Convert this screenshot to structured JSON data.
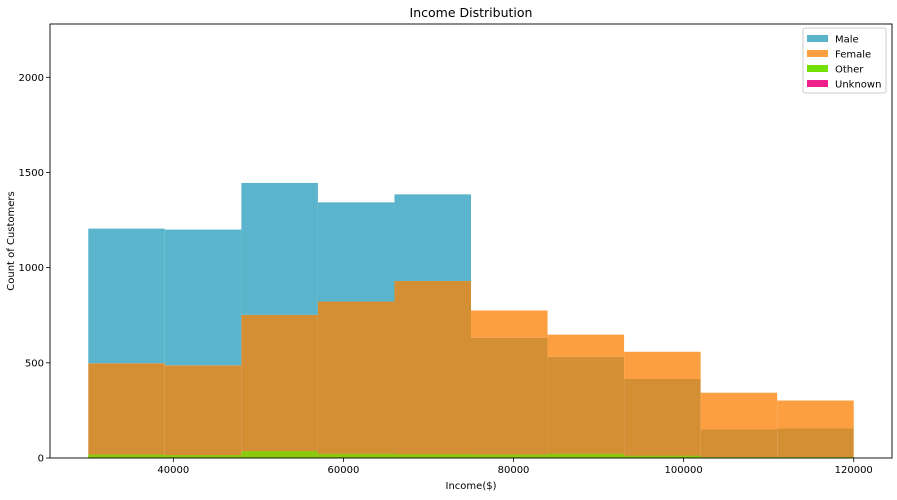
{
  "chart_data": {
    "type": "histogram",
    "title": "Income Distribution",
    "xlabel": "Income($)",
    "ylabel": "Count of Customers",
    "xlim": [
      25500,
      124500
    ],
    "ylim": [
      0,
      2280
    ],
    "xticks": [
      40000,
      60000,
      80000,
      100000,
      120000
    ],
    "yticks": [
      0,
      500,
      1000,
      1500,
      2000
    ],
    "grid": false,
    "legend_position": "top-right",
    "bin_edges": [
      30000,
      39000,
      48000,
      57000,
      66000,
      75000,
      84000,
      93000,
      102000,
      111000,
      120000
    ],
    "series": [
      {
        "name": "Male",
        "color": "#5ab4cc",
        "values": [
          1205,
          1200,
          1445,
          1343,
          1385,
          632,
          532,
          415,
          150,
          155
        ]
      },
      {
        "name": "Female",
        "color": "#fc9f40",
        "values": [
          498,
          487,
          752,
          822,
          930,
          775,
          648,
          558,
          343,
          302
        ]
      },
      {
        "name": "Other",
        "color": "#72e000",
        "values": [
          18,
          15,
          36,
          22,
          20,
          18,
          22,
          12,
          5,
          5
        ]
      },
      {
        "name": "Unknown",
        "color": "#f0208a",
        "values": [
          0,
          0,
          0,
          0,
          0,
          0,
          0,
          0,
          0,
          0
        ]
      }
    ],
    "overlap_color": "#d48f35",
    "bar_alpha": 0.92
  }
}
